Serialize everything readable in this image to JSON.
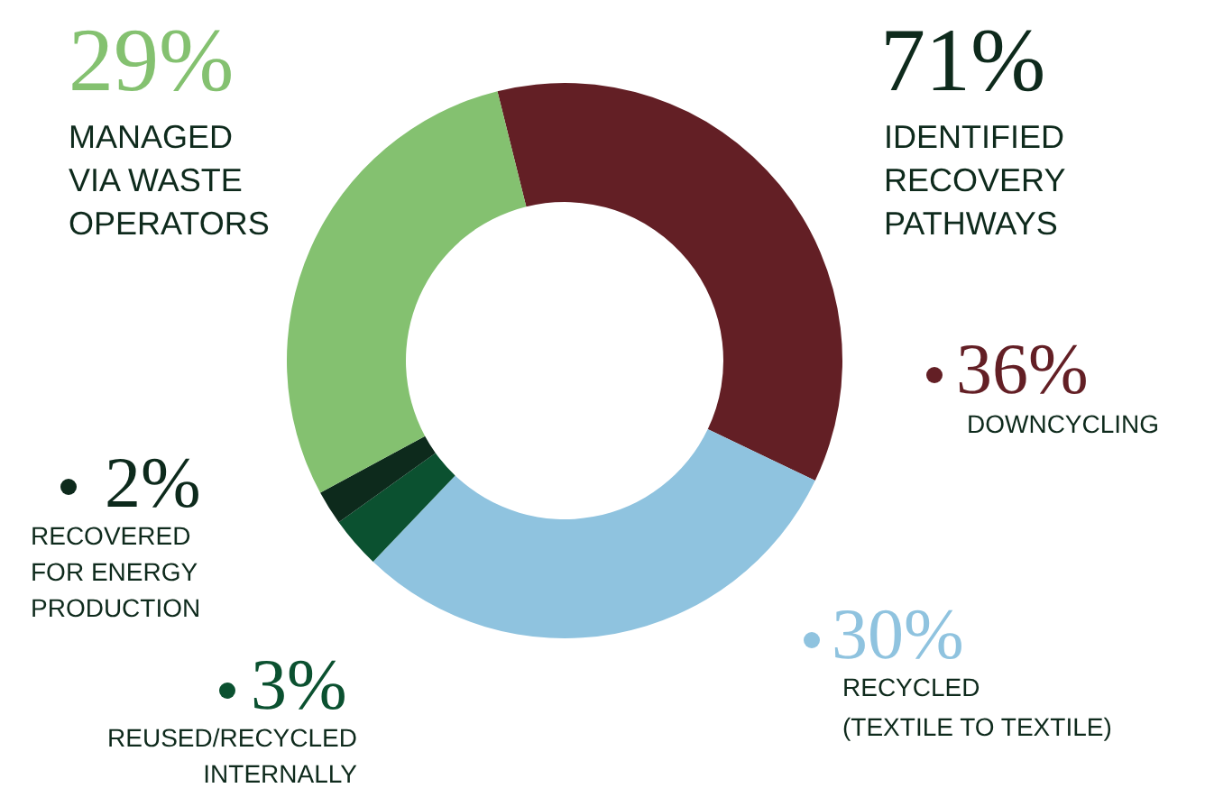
{
  "chart_data": {
    "type": "donut",
    "categories": [
      "DOWNCYCLING",
      "RECYCLED (TEXTILE TO TEXTILE)",
      "REUSED/RECYCLED INTERNALLY",
      "RECOVERED FOR ENERGY PRODUCTION",
      "MANAGED VIA WASTE OPERATORS"
    ],
    "values": [
      36,
      30,
      3,
      2,
      29
    ],
    "value_labels": [
      "36%",
      "30%",
      "3%",
      "2%",
      "29%"
    ],
    "colors": [
      "#631f25",
      "#8fc3df",
      "#0b5130",
      "#0d2a1c",
      "#84c170"
    ],
    "annotations": [
      "71%",
      "IDENTIFIED RECOVERY PATHWAYS"
    ],
    "legend": "bottom left"
  }
}
